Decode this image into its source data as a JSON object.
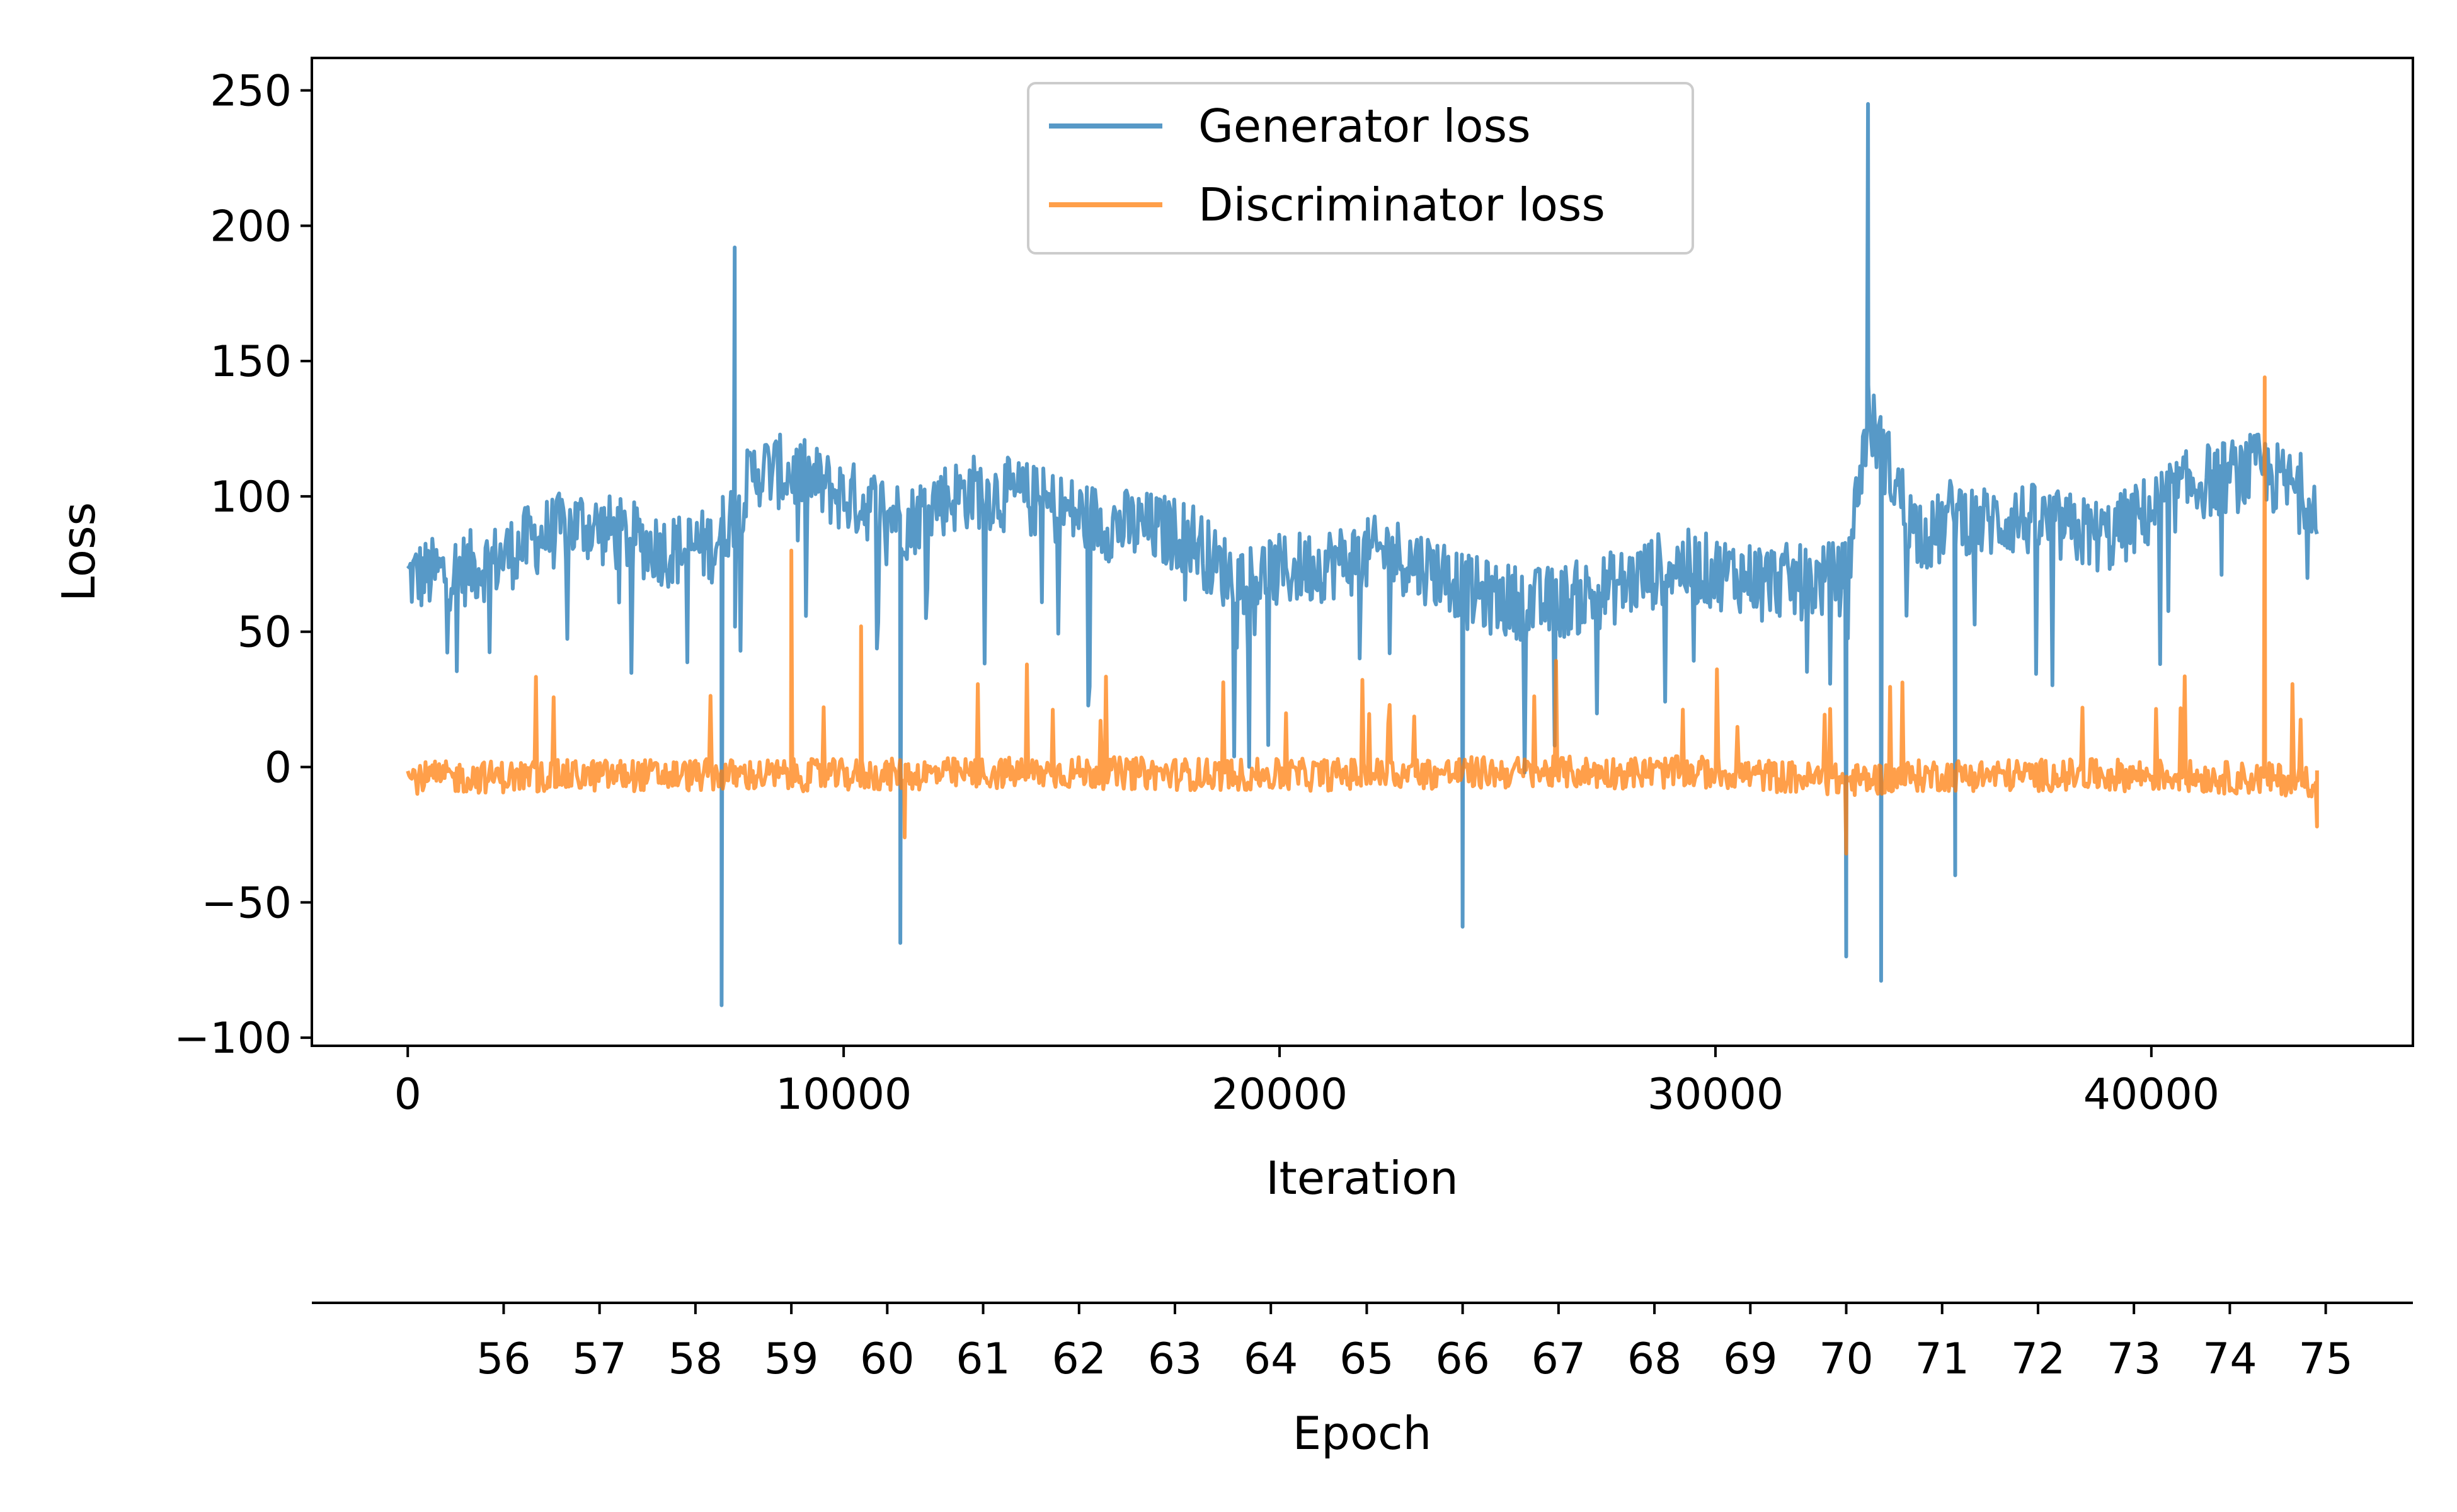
{
  "chart_data": {
    "type": "line",
    "title": "",
    "xlabel": "Iteration",
    "ylabel": "Loss",
    "xlim": [
      -2200,
      46000
    ],
    "ylim": [
      -103,
      262
    ],
    "xticks": [
      0,
      10000,
      20000,
      30000,
      40000
    ],
    "xtick_labels": [
      "0",
      "10000",
      "20000",
      "30000",
      "40000"
    ],
    "yticks": [
      -100,
      -50,
      0,
      50,
      100,
      150,
      200,
      250
    ],
    "ytick_labels": [
      "−100",
      "−50",
      "0",
      "50",
      "100",
      "150",
      "200",
      "250"
    ],
    "secondary_xaxis": {
      "label": "Epoch",
      "ticks": [
        {
          "label": "56",
          "iteration": 2200
        },
        {
          "label": "57",
          "iteration": 4400
        },
        {
          "label": "58",
          "iteration": 6600
        },
        {
          "label": "59",
          "iteration": 8800
        },
        {
          "label": "60",
          "iteration": 11000
        },
        {
          "label": "61",
          "iteration": 13200
        },
        {
          "label": "62",
          "iteration": 15400
        },
        {
          "label": "63",
          "iteration": 17600
        },
        {
          "label": "64",
          "iteration": 19800
        },
        {
          "label": "65",
          "iteration": 22000
        },
        {
          "label": "66",
          "iteration": 24200
        },
        {
          "label": "67",
          "iteration": 26400
        },
        {
          "label": "68",
          "iteration": 28600
        },
        {
          "label": "69",
          "iteration": 30800
        },
        {
          "label": "70",
          "iteration": 33000
        },
        {
          "label": "71",
          "iteration": 35200
        },
        {
          "label": "72",
          "iteration": 37400
        },
        {
          "label": "73",
          "iteration": 39600
        },
        {
          "label": "74",
          "iteration": 41800
        },
        {
          "label": "75",
          "iteration": 44000
        }
      ]
    },
    "legend": {
      "position": "upper-center"
    },
    "grid": false,
    "series": [
      {
        "name": "Generator loss",
        "color": "#1f77b4",
        "alpha": 0.75,
        "x": [
          0,
          1000,
          2000,
          3000,
          4000,
          5000,
          6000,
          7000,
          7500,
          8000,
          9000,
          10000,
          11000,
          11500,
          12000,
          13000,
          14000,
          15000,
          16000,
          17000,
          18000,
          18500,
          19000,
          20000,
          21000,
          22000,
          22500,
          23000,
          24000,
          24200,
          25000,
          26000,
          27000,
          28000,
          29000,
          30000,
          31000,
          32000,
          33000,
          33500,
          34000,
          34500,
          35000,
          35500,
          36000,
          37000,
          38000,
          39000,
          40000,
          41000,
          42000,
          42500,
          43000,
          43800
        ],
        "y": [
          70,
          72,
          76,
          85,
          90,
          85,
          80,
          82,
          95,
          110,
          108,
          100,
          95,
          90,
          98,
          102,
          100,
          95,
          90,
          88,
          85,
          75,
          70,
          72,
          75,
          78,
          80,
          76,
          70,
          65,
          62,
          60,
          63,
          68,
          75,
          72,
          70,
          68,
          70,
          130,
          110,
          90,
          85,
          95,
          90,
          92,
          88,
          85,
          95,
          105,
          108,
          110,
          105,
          100
        ],
        "spikes": [
          {
            "x": 7200,
            "y": -88
          },
          {
            "x": 7500,
            "y": 192
          },
          {
            "x": 11300,
            "y": -65
          },
          {
            "x": 24200,
            "y": -59
          },
          {
            "x": 33000,
            "y": -70
          },
          {
            "x": 33500,
            "y": 245
          },
          {
            "x": 33800,
            "y": -79
          },
          {
            "x": 35500,
            "y": -40
          }
        ]
      },
      {
        "name": "Discriminator loss",
        "color": "#ff7f0e",
        "alpha": 0.75,
        "x": [
          0,
          5000,
          10000,
          15000,
          20000,
          25000,
          30000,
          33000,
          35000,
          40000,
          43800
        ],
        "y": [
          -4,
          -3,
          -3,
          -2,
          -3,
          -2,
          -2,
          -5,
          -3,
          -3,
          -5
        ],
        "spikes": [
          {
            "x": 8800,
            "y": 80
          },
          {
            "x": 10400,
            "y": 52
          },
          {
            "x": 11400,
            "y": -26
          },
          {
            "x": 33000,
            "y": -32
          },
          {
            "x": 42600,
            "y": 144
          },
          {
            "x": 43800,
            "y": -22
          }
        ]
      }
    ]
  }
}
